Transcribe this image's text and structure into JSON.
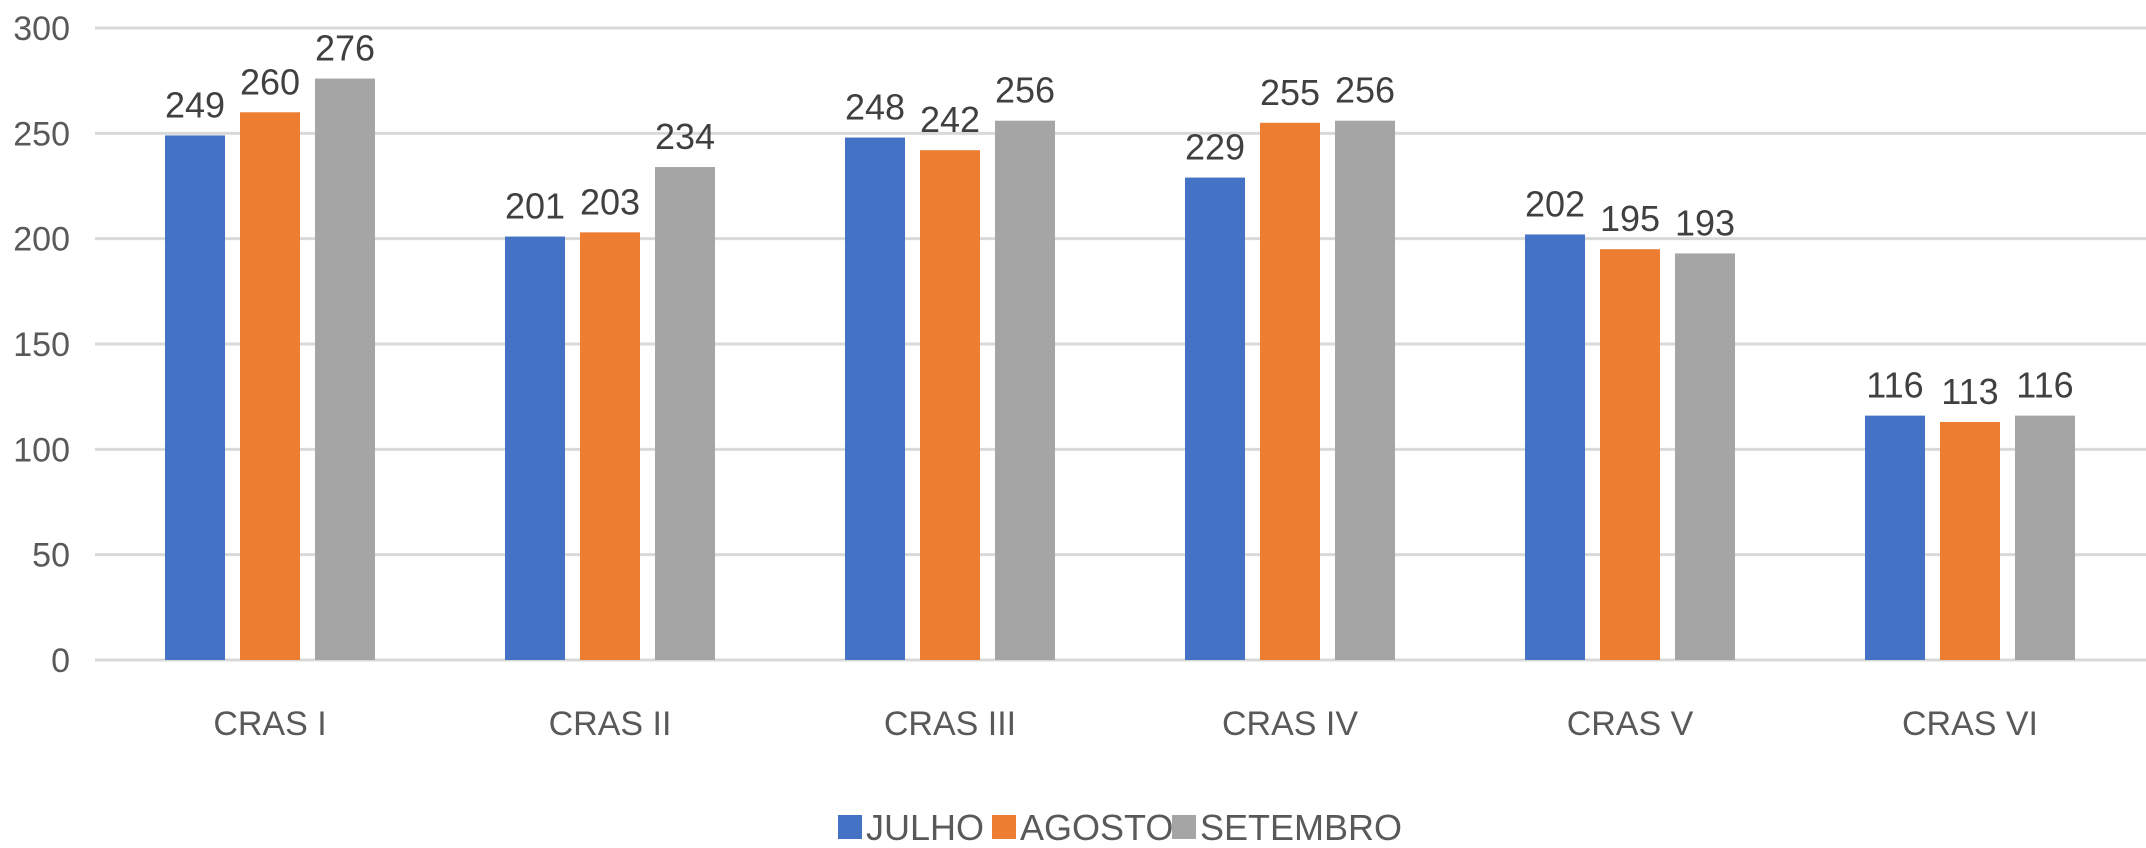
{
  "chart_data": {
    "type": "bar",
    "title": "",
    "xlabel": "",
    "ylabel": "",
    "ylim": [
      0,
      300
    ],
    "yticks": [
      0,
      50,
      100,
      150,
      200,
      250,
      300
    ],
    "grid": true,
    "legend_position": "bottom",
    "categories": [
      "CRAS I",
      "CRAS II",
      "CRAS III",
      "CRAS IV",
      "CRAS V",
      "CRAS VI"
    ],
    "series": [
      {
        "name": "JULHO",
        "color": "#4472c4",
        "values": [
          249,
          201,
          248,
          229,
          202,
          116
        ]
      },
      {
        "name": "AGOSTO",
        "color": "#ed7d31",
        "values": [
          260,
          203,
          242,
          255,
          195,
          113
        ]
      },
      {
        "name": "SETEMBRO",
        "color": "#a5a5a5",
        "values": [
          276,
          234,
          256,
          256,
          193,
          116
        ]
      }
    ]
  }
}
